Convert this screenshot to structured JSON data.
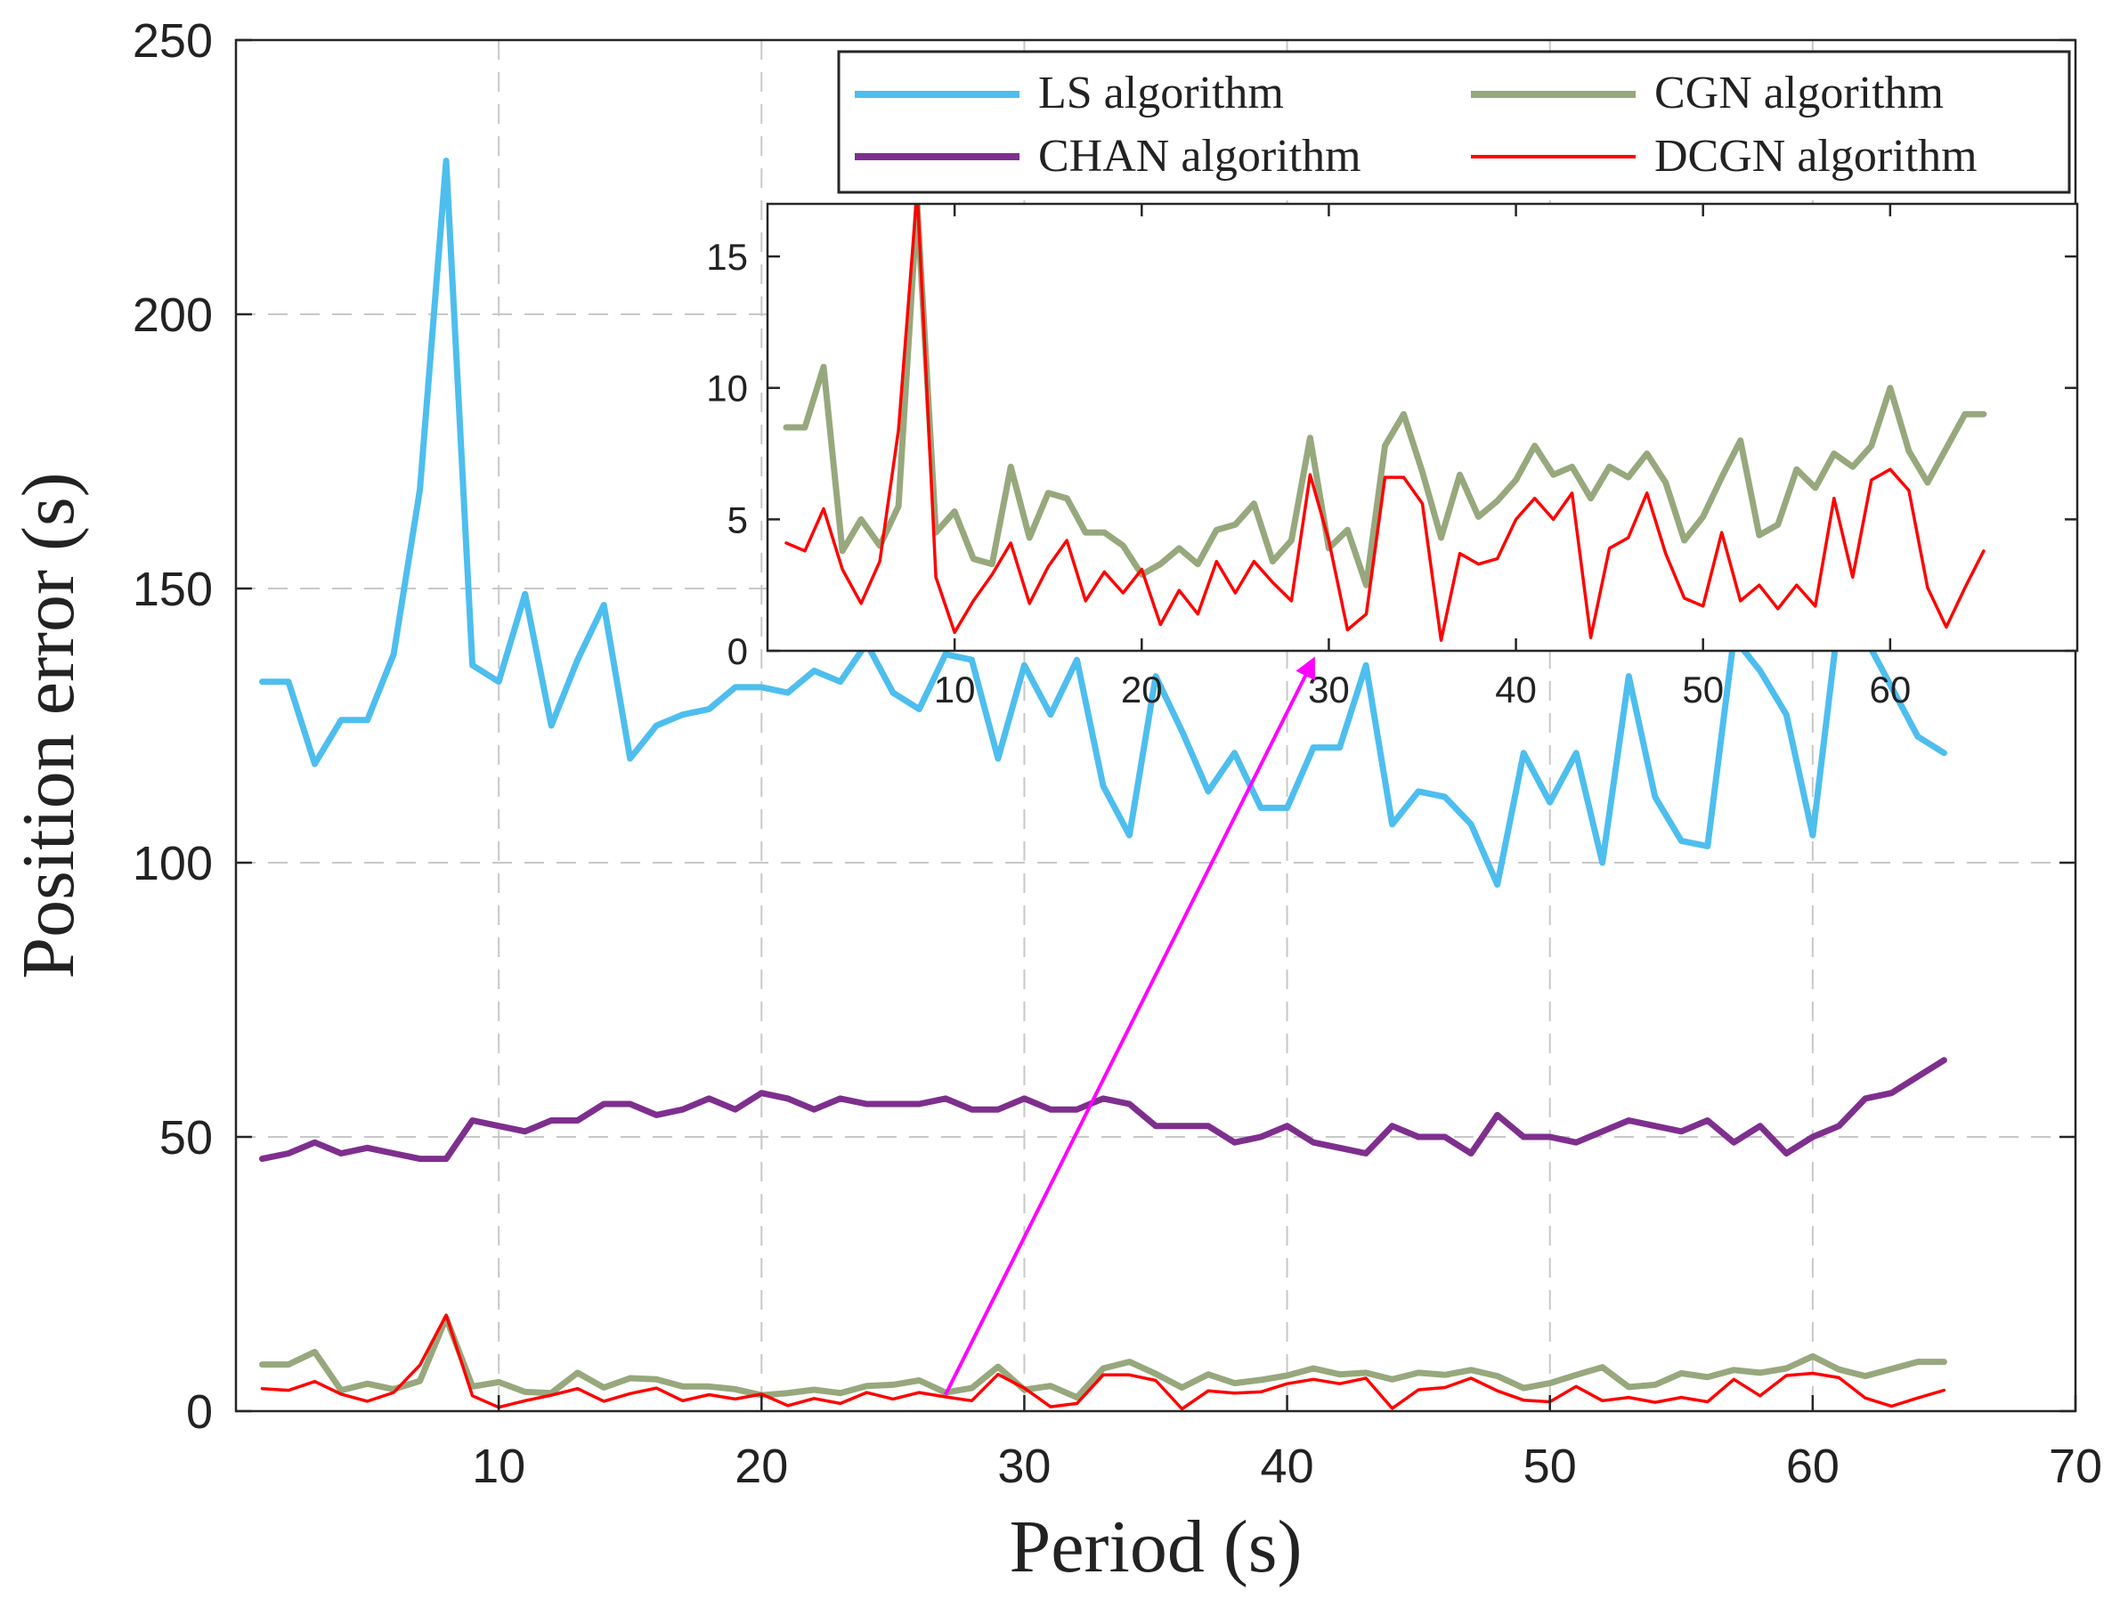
{
  "chart_data": {
    "type": "line",
    "title": "",
    "xlabel": "Period (s)",
    "ylabel": "Position error (s)",
    "xlim": [
      0,
      70
    ],
    "ylim": [
      0,
      250
    ],
    "xticks": [
      10,
      20,
      30,
      40,
      50,
      60,
      70
    ],
    "yticks": [
      0,
      50,
      100,
      150,
      200,
      250
    ],
    "grid": true,
    "legend_position": "top-right",
    "x": [
      1,
      2,
      3,
      4,
      5,
      6,
      7,
      8,
      9,
      10,
      11,
      12,
      13,
      14,
      15,
      16,
      17,
      18,
      19,
      20,
      21,
      22,
      23,
      24,
      25,
      26,
      27,
      28,
      29,
      30,
      31,
      32,
      33,
      34,
      35,
      36,
      37,
      38,
      39,
      40,
      41,
      42,
      43,
      44,
      45,
      46,
      47,
      48,
      49,
      50,
      51,
      52,
      53,
      54,
      55,
      56,
      57,
      58,
      59,
      60,
      61,
      62,
      63,
      64,
      65
    ],
    "series": [
      {
        "name": "LS algorithm",
        "color": "#4DBEEE",
        "values": [
          133,
          133,
          118,
          126,
          126,
          138,
          168,
          228,
          136,
          133,
          149,
          125,
          137,
          147,
          119,
          125,
          127,
          128,
          132,
          132,
          131,
          135,
          133,
          140,
          131,
          128,
          138,
          137,
          119,
          136,
          127,
          137,
          114,
          105,
          134,
          124,
          113,
          120,
          110,
          110,
          121,
          121,
          136,
          107,
          113,
          112,
          107,
          96,
          120,
          111,
          120,
          100,
          134,
          112,
          104,
          103,
          141,
          135,
          127,
          105,
          145,
          141,
          132,
          123,
          120
        ],
        "line_width": 7
      },
      {
        "name": "CHAN algorithm",
        "color": "#7E2F8E",
        "values": [
          46,
          47,
          49,
          47,
          48,
          47,
          46,
          46,
          53,
          52,
          51,
          53,
          53,
          56,
          56,
          54,
          55,
          57,
          55,
          58,
          57,
          55,
          57,
          56,
          56,
          56,
          57,
          55,
          55,
          57,
          55,
          55,
          57,
          56,
          52,
          52,
          52,
          49,
          50,
          52,
          49,
          48,
          47,
          52,
          50,
          50,
          47,
          54,
          50,
          50,
          49,
          51,
          53,
          52,
          51,
          53,
          49,
          52,
          47,
          50,
          52,
          57,
          58,
          61,
          64
        ],
        "line_width": 7
      },
      {
        "name": "CGN algorithm",
        "color": "#97A87D",
        "values": [
          8.5,
          8.5,
          10.8,
          3.8,
          5,
          4,
          5.5,
          17,
          4.5,
          5.3,
          3.5,
          3.3,
          7,
          4.3,
          6,
          5.8,
          4.5,
          4.5,
          4,
          2.9,
          3.3,
          3.9,
          3.3,
          4.6,
          4.8,
          5.6,
          3.4,
          4.2,
          8.1,
          3.9,
          4.6,
          2.5,
          7.8,
          9,
          6.8,
          4.3,
          6.7,
          5.1,
          5.7,
          6.5,
          7.8,
          6.7,
          7,
          5.8,
          7,
          6.6,
          7.5,
          6.4,
          4.2,
          5.1,
          6.6,
          8,
          4.4,
          4.8,
          6.9,
          6.2,
          7.5,
          7,
          7.8,
          10,
          7.6,
          6.4,
          7.7,
          9,
          9
        ],
        "line_width": 7
      },
      {
        "name": "DCGN algorithm",
        "color": "#FF0000",
        "values": [
          4.1,
          3.8,
          5.4,
          3.1,
          1.8,
          3.4,
          8.4,
          17.5,
          2.8,
          0.7,
          1.9,
          2.9,
          4.1,
          1.8,
          3.2,
          4.2,
          1.9,
          3,
          2.2,
          3.1,
          1,
          2.3,
          1.4,
          3.4,
          2.2,
          3.4,
          2.6,
          1.9,
          6.7,
          4.2,
          0.8,
          1.4,
          6.6,
          6.6,
          5.6,
          0.4,
          3.7,
          3.3,
          3.5,
          5,
          5.8,
          5,
          6,
          0.5,
          3.9,
          4.3,
          6,
          3.7,
          2,
          1.7,
          4.5,
          1.9,
          2.5,
          1.6,
          2.5,
          1.7,
          5.8,
          2.8,
          6.5,
          6.9,
          6.1,
          2.4,
          0.9,
          2.4,
          3.8
        ],
        "line_width": 3.5
      }
    ],
    "inset": {
      "xlim": [
        0,
        70
      ],
      "ylim": [
        0,
        17
      ],
      "xticks": [
        10,
        20,
        30,
        40,
        50,
        60
      ],
      "yticks": [
        0,
        5,
        10,
        15
      ],
      "series_shown": [
        "CGN algorithm",
        "DCGN algorithm"
      ],
      "grid": false
    },
    "annotation": {
      "type": "arrow",
      "color": "#FF00FF",
      "from": [
        27,
        3
      ],
      "to": [
        41,
        137
      ]
    }
  }
}
